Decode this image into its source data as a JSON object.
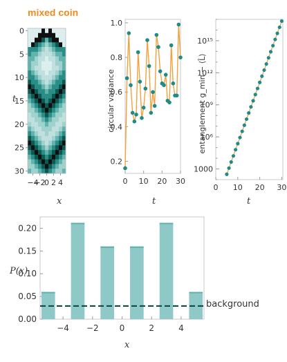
{
  "colors": {
    "title": "#f08a1c",
    "series": "#1e8a8a",
    "line": "#f3a03c",
    "bar": "#8ec9c8",
    "bar_top": "#5fb0ad",
    "dashed": "#0f4a4a",
    "axis": "#999999",
    "frame": "#bbbbbb"
  },
  "chart_data": [
    {
      "id": "heatmap",
      "type": "heatmap",
      "title": "mixed coin",
      "xlabel": "x",
      "ylabel": "t",
      "xticks": [
        -4,
        -2,
        0,
        2,
        4
      ],
      "yticks": [
        0,
        5,
        10,
        15,
        20,
        25,
        30
      ],
      "xlim": [
        -5,
        5
      ],
      "ylim": [
        30,
        0
      ],
      "palette": [
        "#dceeed",
        "#bfe0de",
        "#9fd1cd",
        "#62b3ad",
        "#2a8d86",
        "#0c5953",
        "#101010"
      ],
      "grid": [
        [
          0,
          0,
          0,
          0,
          6,
          0,
          6,
          0,
          0,
          0,
          0
        ],
        [
          0,
          0,
          0,
          6,
          6,
          6,
          6,
          6,
          0,
          0,
          0
        ],
        [
          0,
          0,
          6,
          6,
          5,
          3,
          5,
          6,
          6,
          0,
          0
        ],
        [
          0,
          6,
          5,
          4,
          3,
          2,
          3,
          4,
          5,
          6,
          0
        ],
        [
          4,
          4,
          4,
          3,
          2,
          1,
          2,
          3,
          4,
          4,
          4
        ],
        [
          4,
          3,
          3,
          2,
          1,
          1,
          1,
          2,
          3,
          3,
          4
        ],
        [
          3,
          3,
          2,
          1,
          1,
          0,
          1,
          1,
          2,
          3,
          3
        ],
        [
          3,
          2,
          2,
          1,
          0,
          0,
          0,
          1,
          2,
          2,
          3
        ],
        [
          3,
          2,
          1,
          1,
          0,
          0,
          0,
          1,
          1,
          2,
          3
        ],
        [
          4,
          3,
          2,
          1,
          1,
          0,
          1,
          1,
          2,
          3,
          4
        ],
        [
          4,
          4,
          3,
          2,
          1,
          1,
          1,
          2,
          3,
          4,
          4
        ],
        [
          5,
          4,
          4,
          3,
          2,
          1,
          2,
          3,
          4,
          4,
          5
        ],
        [
          6,
          5,
          4,
          4,
          3,
          2,
          3,
          4,
          4,
          5,
          6
        ],
        [
          5,
          6,
          5,
          4,
          4,
          3,
          4,
          4,
          5,
          6,
          5
        ],
        [
          4,
          5,
          6,
          5,
          4,
          4,
          4,
          5,
          6,
          5,
          4
        ],
        [
          3,
          4,
          5,
          6,
          5,
          4,
          5,
          6,
          5,
          4,
          3
        ],
        [
          2,
          3,
          4,
          5,
          6,
          5,
          6,
          5,
          4,
          3,
          2
        ],
        [
          2,
          2,
          3,
          4,
          5,
          6,
          5,
          4,
          3,
          2,
          2
        ],
        [
          1,
          2,
          2,
          3,
          4,
          5,
          4,
          3,
          2,
          2,
          1
        ],
        [
          1,
          1,
          2,
          2,
          3,
          4,
          3,
          2,
          2,
          1,
          1
        ],
        [
          2,
          1,
          1,
          2,
          2,
          3,
          2,
          2,
          1,
          1,
          2
        ],
        [
          3,
          2,
          1,
          1,
          2,
          2,
          2,
          1,
          1,
          2,
          3
        ],
        [
          4,
          3,
          2,
          1,
          1,
          2,
          1,
          1,
          2,
          3,
          4
        ],
        [
          5,
          4,
          3,
          2,
          1,
          1,
          1,
          2,
          3,
          4,
          5
        ],
        [
          6,
          5,
          4,
          3,
          2,
          1,
          2,
          3,
          4,
          5,
          6
        ],
        [
          5,
          6,
          5,
          4,
          3,
          2,
          3,
          4,
          5,
          6,
          5
        ],
        [
          4,
          5,
          6,
          5,
          4,
          3,
          4,
          5,
          6,
          5,
          4
        ],
        [
          3,
          4,
          5,
          6,
          5,
          4,
          5,
          6,
          5,
          4,
          3
        ],
        [
          2,
          3,
          4,
          5,
          6,
          5,
          6,
          5,
          4,
          3,
          2
        ],
        [
          2,
          2,
          3,
          4,
          5,
          6,
          5,
          4,
          3,
          2,
          2
        ],
        [
          3,
          2,
          2,
          3,
          4,
          5,
          4,
          3,
          2,
          2,
          3
        ]
      ]
    },
    {
      "id": "variance",
      "type": "line",
      "xlabel": "t",
      "ylabel": "circular variance",
      "xlim": [
        0,
        30
      ],
      "ylim": [
        0.13,
        1.02
      ],
      "xticks": [
        0,
        10,
        20,
        30
      ],
      "yticks": [
        0.2,
        0.4,
        0.6,
        0.8,
        1.0
      ],
      "ytick_labels": [
        "0.2",
        "0.4",
        "0.6",
        "0.8",
        "1.0"
      ],
      "series": [
        {
          "x": [
            0,
            1,
            2,
            3,
            4,
            5,
            6,
            7,
            8,
            9,
            10,
            11,
            12,
            13,
            14,
            15,
            16,
            17,
            18,
            19,
            20,
            21,
            22,
            23,
            24,
            25,
            26,
            27,
            28,
            29,
            30
          ],
          "values": [
            0.16,
            0.68,
            0.94,
            0.64,
            0.48,
            0.43,
            0.47,
            0.83,
            0.66,
            0.45,
            0.51,
            0.62,
            0.9,
            0.75,
            0.48,
            0.6,
            0.52,
            0.93,
            0.86,
            0.72,
            0.65,
            0.64,
            0.7,
            0.55,
            0.54,
            0.87,
            0.65,
            0.58,
            0.58,
            0.99,
            0.8
          ]
        }
      ]
    },
    {
      "id": "entanglement",
      "type": "scatter",
      "xlabel": "t",
      "ylabel": "entanglement  g_min − ⟨L̂⟩",
      "ylog": true,
      "xlim": [
        0,
        30.5
      ],
      "ylim": [
        100,
        1e+17
      ],
      "xticks": [
        0,
        10,
        20,
        30
      ],
      "yticks": [
        1000,
        1000000.0,
        1000000000.0,
        1000000000000.0,
        1000000000000000.0
      ],
      "ytick_labels": [
        "1000",
        "10⁶",
        "10⁹",
        "10¹²",
        "10¹⁵"
      ],
      "series": [
        {
          "x": [
            5,
            6,
            7,
            8,
            9,
            10,
            11,
            12,
            13,
            14,
            15,
            16,
            17,
            18,
            19,
            20,
            21,
            22,
            23,
            24,
            25,
            26,
            27,
            28,
            29,
            30
          ],
          "log10_values": [
            2.5,
            3.08,
            3.65,
            4.22,
            4.8,
            5.37,
            5.94,
            6.52,
            7.09,
            7.66,
            8.24,
            8.81,
            9.38,
            9.96,
            10.53,
            11.1,
            11.68,
            12.25,
            12.82,
            13.4,
            13.97,
            14.54,
            15.12,
            15.69,
            16.26,
            16.84
          ]
        }
      ]
    },
    {
      "id": "distribution",
      "type": "bar",
      "xlabel": "x",
      "ylabel": "P(x)",
      "xlim": [
        -5.55,
        5.55
      ],
      "ylim": [
        0,
        0.225
      ],
      "xticks": [
        -4,
        -2,
        0,
        2,
        4
      ],
      "xtick_labels": [
        "−4",
        "−2",
        "0",
        "2",
        "4"
      ],
      "yticks": [
        0.0,
        0.05,
        0.1,
        0.15,
        0.2
      ],
      "ytick_labels": [
        "0.00",
        "0.05",
        "0.10",
        "0.15",
        "0.20"
      ],
      "categories": [
        -5,
        -3,
        -1,
        1,
        3,
        5
      ],
      "values": [
        0.06,
        0.212,
        0.16,
        0.16,
        0.212,
        0.06
      ],
      "background": 0.029,
      "background_label": "background"
    }
  ]
}
